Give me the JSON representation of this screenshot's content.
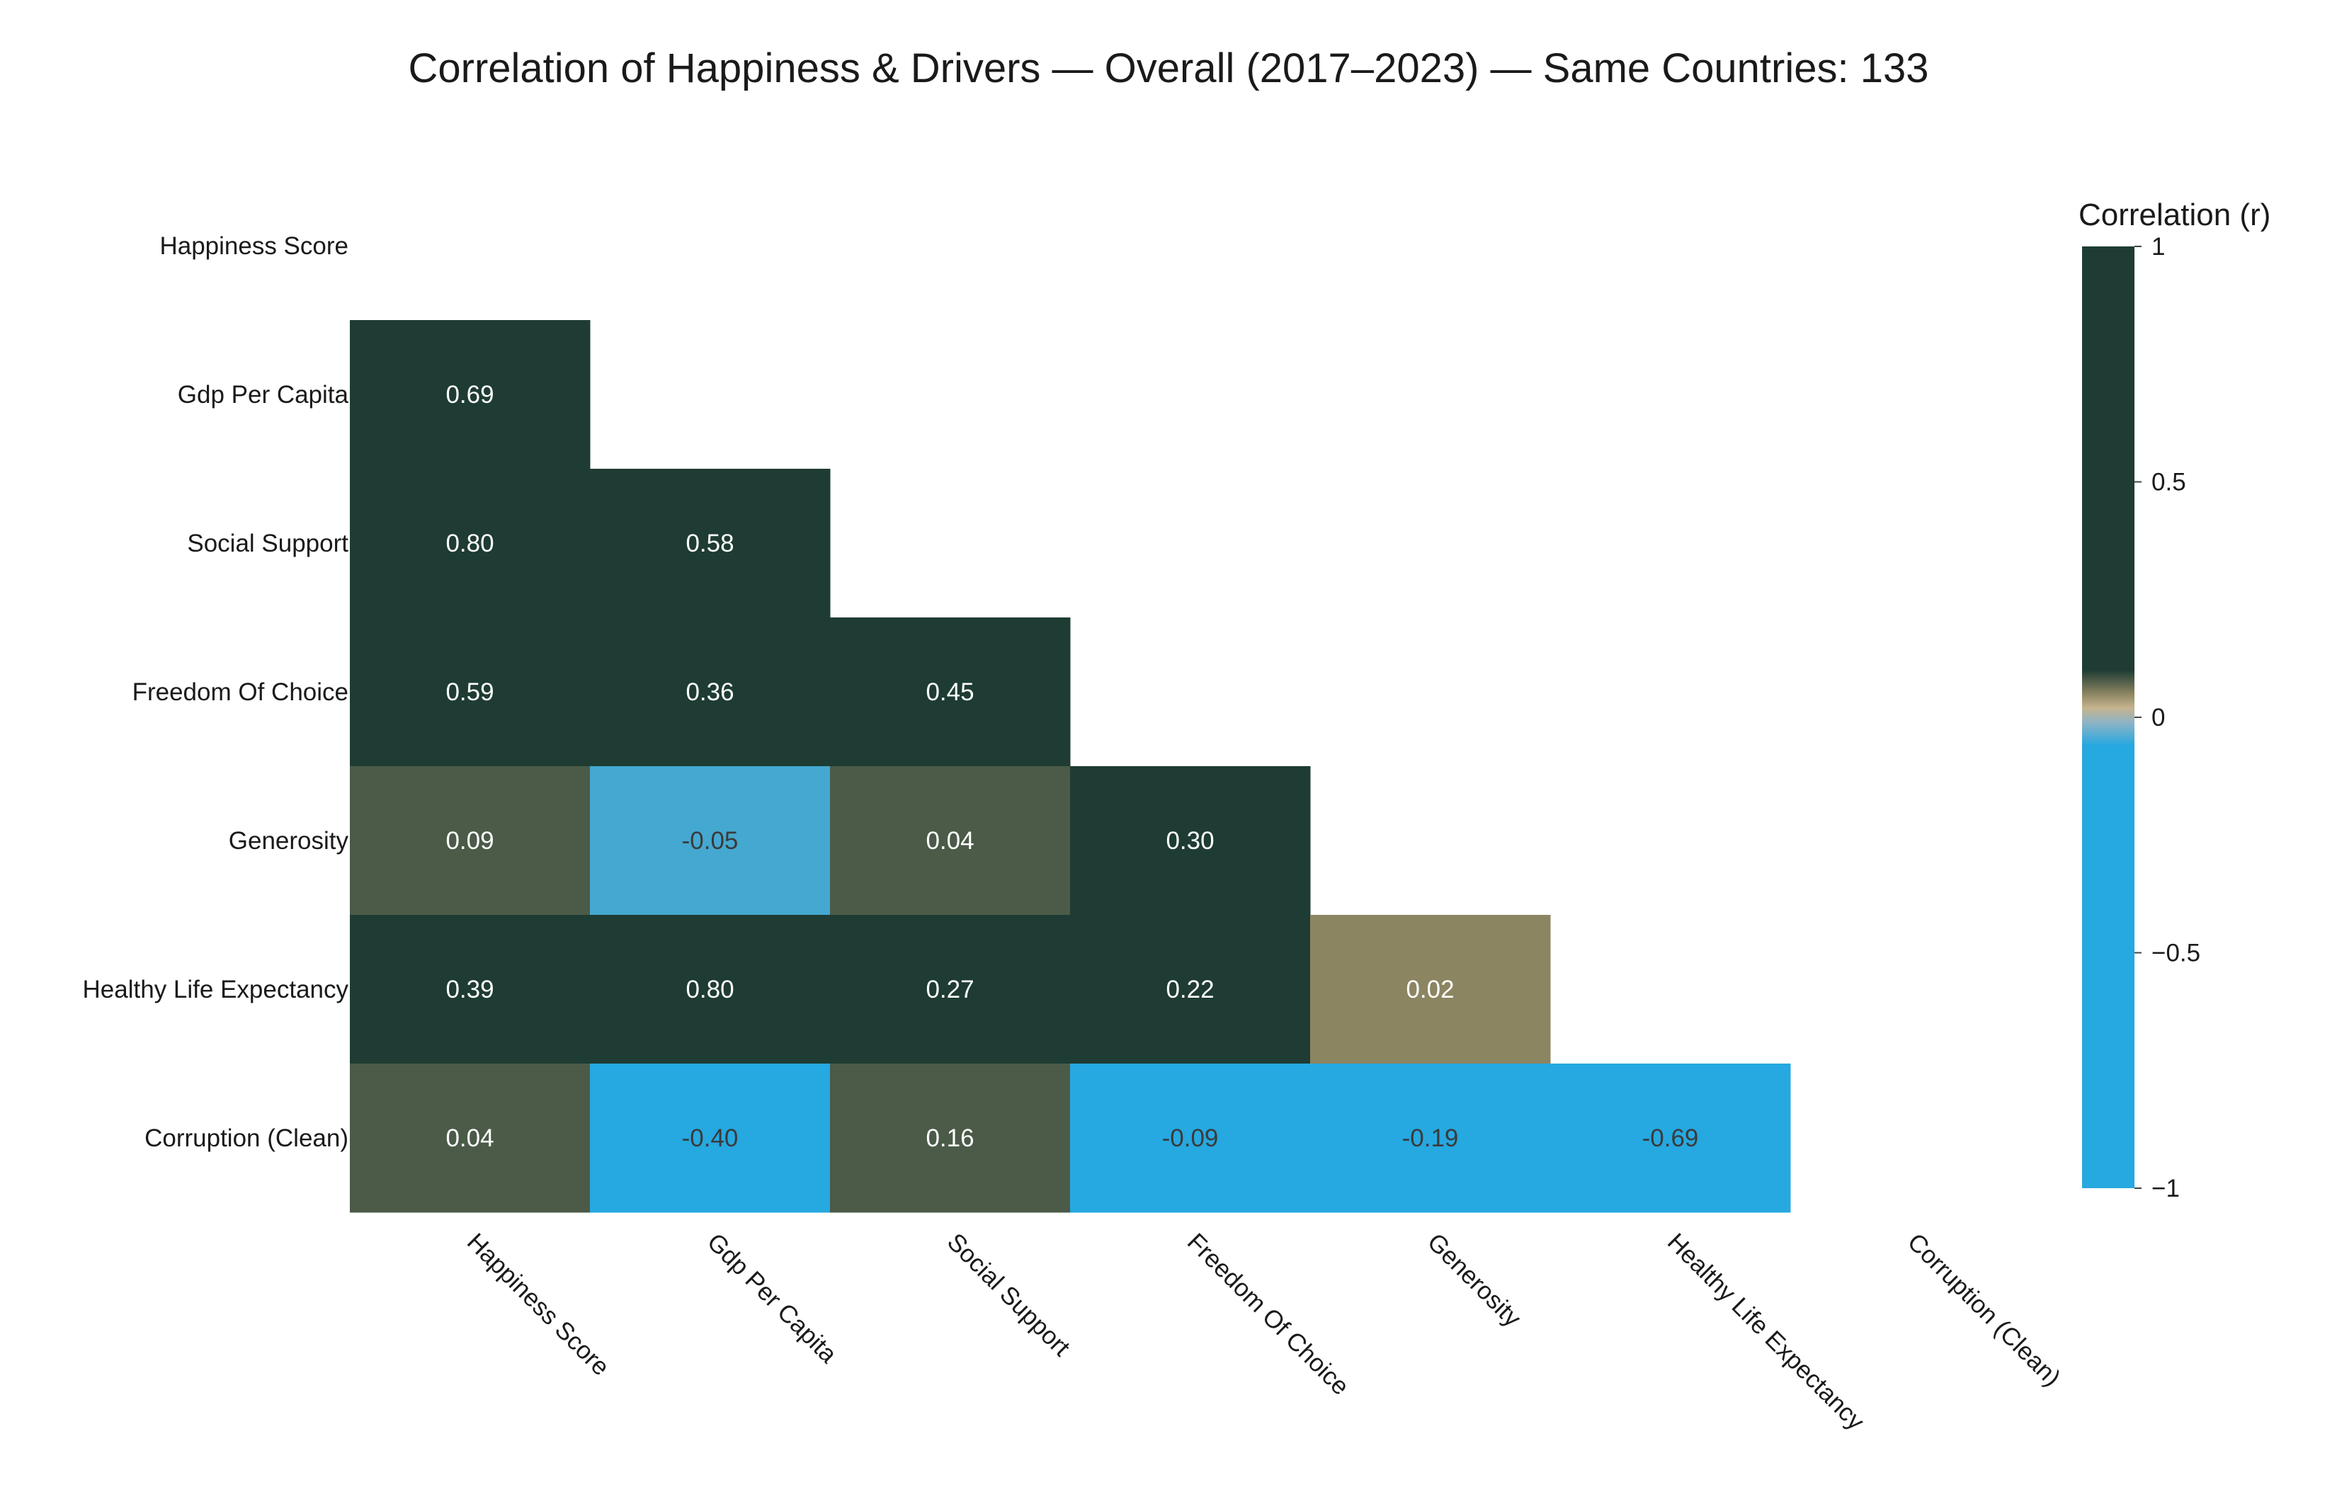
{
  "chart_data": {
    "type": "heatmap",
    "title": "Correlation of Happiness & Drivers — Overall (2017–2023) — Same Countries: 133",
    "variables": [
      "Happiness Score",
      "Gdp Per Capita",
      "Social Support",
      "Freedom Of Choice",
      "Generosity",
      "Healthy Life Expectancy",
      "Corruption (Clean)"
    ],
    "matrix": [
      [
        null,
        null,
        null,
        null,
        null,
        null,
        null
      ],
      [
        0.69,
        null,
        null,
        null,
        null,
        null,
        null
      ],
      [
        0.8,
        0.58,
        null,
        null,
        null,
        null,
        null
      ],
      [
        0.59,
        0.36,
        0.45,
        null,
        null,
        null,
        null
      ],
      [
        0.09,
        -0.05,
        0.04,
        0.3,
        null,
        null,
        null
      ],
      [
        0.39,
        0.8,
        0.27,
        0.22,
        0.02,
        null,
        null
      ],
      [
        0.04,
        -0.4,
        0.16,
        -0.09,
        -0.19,
        -0.69,
        null
      ]
    ],
    "zmin": -1,
    "zmax": 1,
    "colorbar": {
      "title": "Correlation (r)",
      "ticks": [
        1,
        0.5,
        0,
        -0.5,
        -1
      ],
      "tick_labels": [
        "1",
        "0.5",
        "0",
        "−0.5",
        "−1"
      ]
    },
    "colors": {
      "strong_positive": "#1e3c33",
      "weak_positive": "#4b5b48",
      "near_zero": "#8c8562",
      "weak_negative": "#44a8d0",
      "negative": "#26a8e0"
    }
  }
}
